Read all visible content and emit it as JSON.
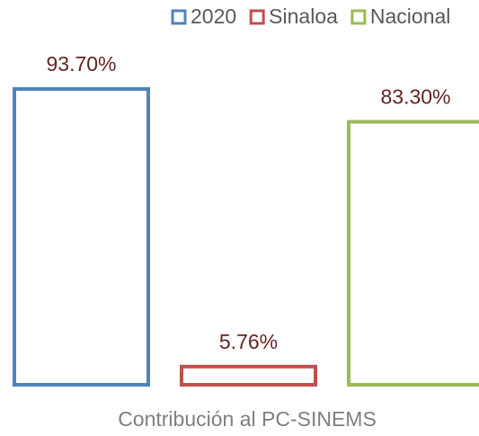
{
  "chart_data": {
    "type": "bar",
    "categories": [
      "Contribución al PC-SINEMS"
    ],
    "series": [
      {
        "name": "2020",
        "color": "#4f81bd",
        "values": [
          93.7
        ],
        "value_labels": [
          "93.70%"
        ]
      },
      {
        "name": "Sinaloa",
        "color": "#c0504d",
        "values": [
          5.76
        ],
        "value_labels": [
          "5.76%"
        ]
      },
      {
        "name": "Nacional",
        "color": "#9bbb59",
        "values": [
          83.3
        ],
        "value_labels": [
          "83.30%"
        ]
      }
    ],
    "legend": "top",
    "fill": false
  }
}
